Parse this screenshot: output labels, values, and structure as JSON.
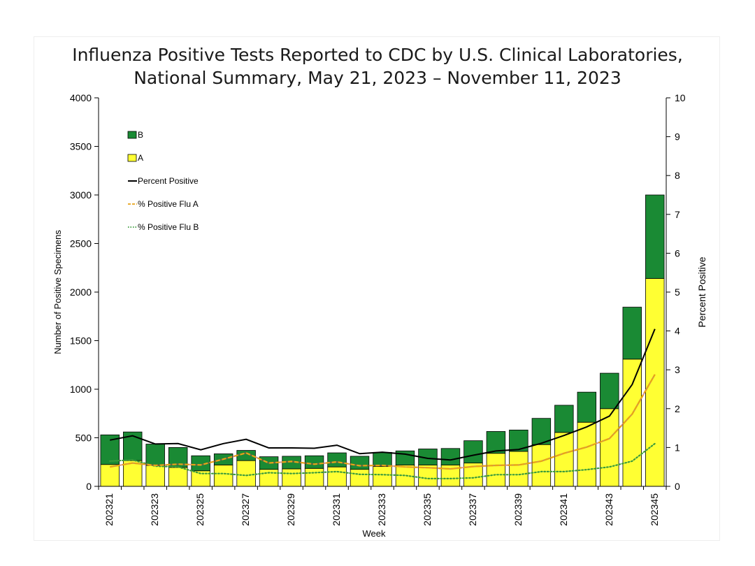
{
  "chart_data": {
    "type": "bar",
    "stacked": true,
    "title_lines": [
      "Influenza Positive Tests Reported to CDC by U.S. Clinical Laboratories,",
      "National Summary, May 21, 2023 – November 11, 2023"
    ],
    "xlabel": "Week",
    "ylabel_left": "Number of Positive Specimens",
    "ylabel_right": "Percent Positive",
    "ylim_left": [
      0,
      4000
    ],
    "ylim_right": [
      0,
      10
    ],
    "yticks_left": [
      "0",
      "500",
      "1000",
      "1500",
      "2000",
      "2500",
      "3000",
      "3500",
      "4000"
    ],
    "yticks_right": [
      "0",
      "1",
      "2",
      "3",
      "4",
      "5",
      "6",
      "7",
      "8",
      "9",
      "10"
    ],
    "categories": [
      "202321",
      "202322",
      "202323",
      "202324",
      "202325",
      "202326",
      "202327",
      "202328",
      "202329",
      "202330",
      "202331",
      "202332",
      "202333",
      "202334",
      "202335",
      "202336",
      "202337",
      "202338",
      "202339",
      "202340",
      "202341",
      "202342",
      "202343",
      "202344",
      "202345"
    ],
    "x_tick_labels": [
      "202321",
      "202323",
      "202325",
      "202327",
      "202329",
      "202331",
      "202333",
      "202335",
      "202337",
      "202339",
      "202341",
      "202343",
      "202345"
    ],
    "grid": false,
    "legend_placement": "top-left",
    "series": [
      {
        "name": "A",
        "kind": "bar",
        "color": "#ffff33",
        "values": [
          225,
          265,
          215,
          195,
          160,
          220,
          265,
          175,
          180,
          185,
          200,
          175,
          205,
          220,
          220,
          220,
          240,
          340,
          360,
          430,
          555,
          660,
          800,
          1310,
          2140
        ]
      },
      {
        "name": "B",
        "kind": "bar",
        "color": "#1a8a34",
        "values": [
          305,
          295,
          220,
          205,
          155,
          115,
          105,
          130,
          130,
          130,
          145,
          135,
          145,
          145,
          165,
          170,
          230,
          225,
          220,
          270,
          280,
          310,
          365,
          535,
          860
        ]
      },
      {
        "name": "Percent Positive",
        "kind": "line",
        "axis": "right",
        "color": "#000000",
        "style": "solid",
        "values": [
          1.19,
          1.3,
          1.09,
          1.1,
          0.94,
          1.1,
          1.21,
          0.99,
          0.99,
          0.98,
          1.06,
          0.84,
          0.88,
          0.83,
          0.72,
          0.68,
          0.8,
          0.91,
          0.95,
          1.11,
          1.31,
          1.53,
          1.81,
          2.62,
          4.05
        ]
      },
      {
        "name": "% Positive Flu A",
        "kind": "line",
        "axis": "right",
        "color": "#e8a317",
        "style": "dashed",
        "values": [
          0.5,
          0.6,
          0.54,
          0.57,
          0.55,
          0.7,
          0.86,
          0.6,
          0.64,
          0.57,
          0.63,
          0.53,
          0.54,
          0.5,
          0.48,
          0.45,
          0.51,
          0.54,
          0.55,
          0.65,
          0.85,
          1.01,
          1.23,
          1.86,
          2.88
        ]
      },
      {
        "name": "% Positive Flu B",
        "kind": "line",
        "axis": "right",
        "color": "#3a9a3a",
        "style": "dotted",
        "values": [
          0.65,
          0.68,
          0.52,
          0.5,
          0.33,
          0.33,
          0.28,
          0.35,
          0.33,
          0.35,
          0.38,
          0.31,
          0.3,
          0.28,
          0.2,
          0.2,
          0.22,
          0.3,
          0.3,
          0.38,
          0.38,
          0.43,
          0.5,
          0.65,
          1.1
        ]
      }
    ]
  }
}
